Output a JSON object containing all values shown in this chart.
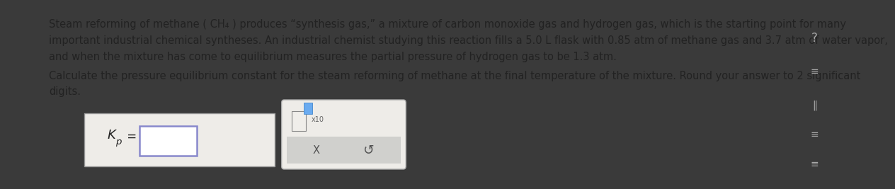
{
  "bg_color": "#3a3a3a",
  "content_bg": "#eeecea",
  "text_color": "#222222",
  "sidebar_bg": "#c8c8c8",
  "para1_line1": "Steam reforming of methane ( CH₄ ) produces “synthesis gas,” a mixture of carbon monoxide gas and hydrogen gas, which is the starting point for many",
  "para1_line2": "important industrial chemical syntheses. An industrial chemist studying this reaction fills a 5.0 L flask with 0.85 atm of methane gas and 3.7 atm of water vapor,",
  "para1_line3": "and when the mixture has come to equilibrium measures the partial pressure of hydrogen gas to be 1.3 atm.",
  "para2_line1": "Calculate the pressure equilibrium constant for the steam reforming of methane at the final temperature of the mixture. Round your answer to 2 significant",
  "para2_line2": "digits.",
  "kp_label": "K",
  "kp_sub": "p",
  "equals": " =",
  "input_box_color": "#ffffff",
  "input_border_color": "#8888cc",
  "box1_bg": "#eeece8",
  "box1_border": "#999999",
  "box2_bg": "#eeece8",
  "box2_border": "#aaaaaa",
  "box2_lower_bg": "#d0d0cd",
  "x_color": "#555555",
  "refresh_color": "#555555",
  "icon_color": "#999999",
  "font_size_body": 10.5,
  "font_size_kp": 12,
  "sidebar_icon_color": "#aaaaaa",
  "question_mark_color": "#888888"
}
